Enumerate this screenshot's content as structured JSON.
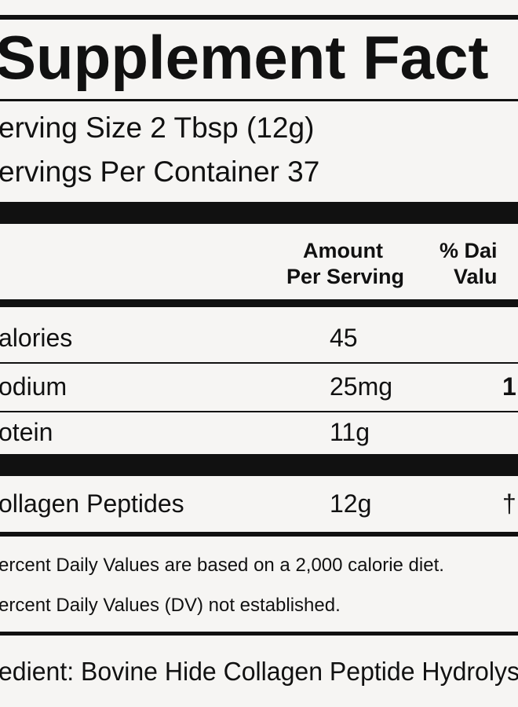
{
  "header": {
    "title": "Supplement Fact"
  },
  "serving": {
    "size": "erving Size 2 Tbsp (12g)",
    "per_container": "ervings Per Container 37"
  },
  "table": {
    "columns": {
      "amount": [
        "Amount",
        "Per Serving"
      ],
      "daily_value": [
        "% Dai",
        "Valu"
      ]
    },
    "rows": [
      [
        "alories",
        "45",
        ""
      ],
      [
        "odium",
        "25mg",
        "1"
      ],
      [
        "otein",
        "11g",
        ""
      ],
      [
        "ollagen Peptides",
        "12g",
        "†"
      ]
    ]
  },
  "footnotes": [
    "ercent Daily Values are based on a 2,000 calorie diet.",
    "ercent Daily Values (DV) not established."
  ],
  "ingredients": "edient: Bovine Hide Collagen Peptide Hydrolys"
}
